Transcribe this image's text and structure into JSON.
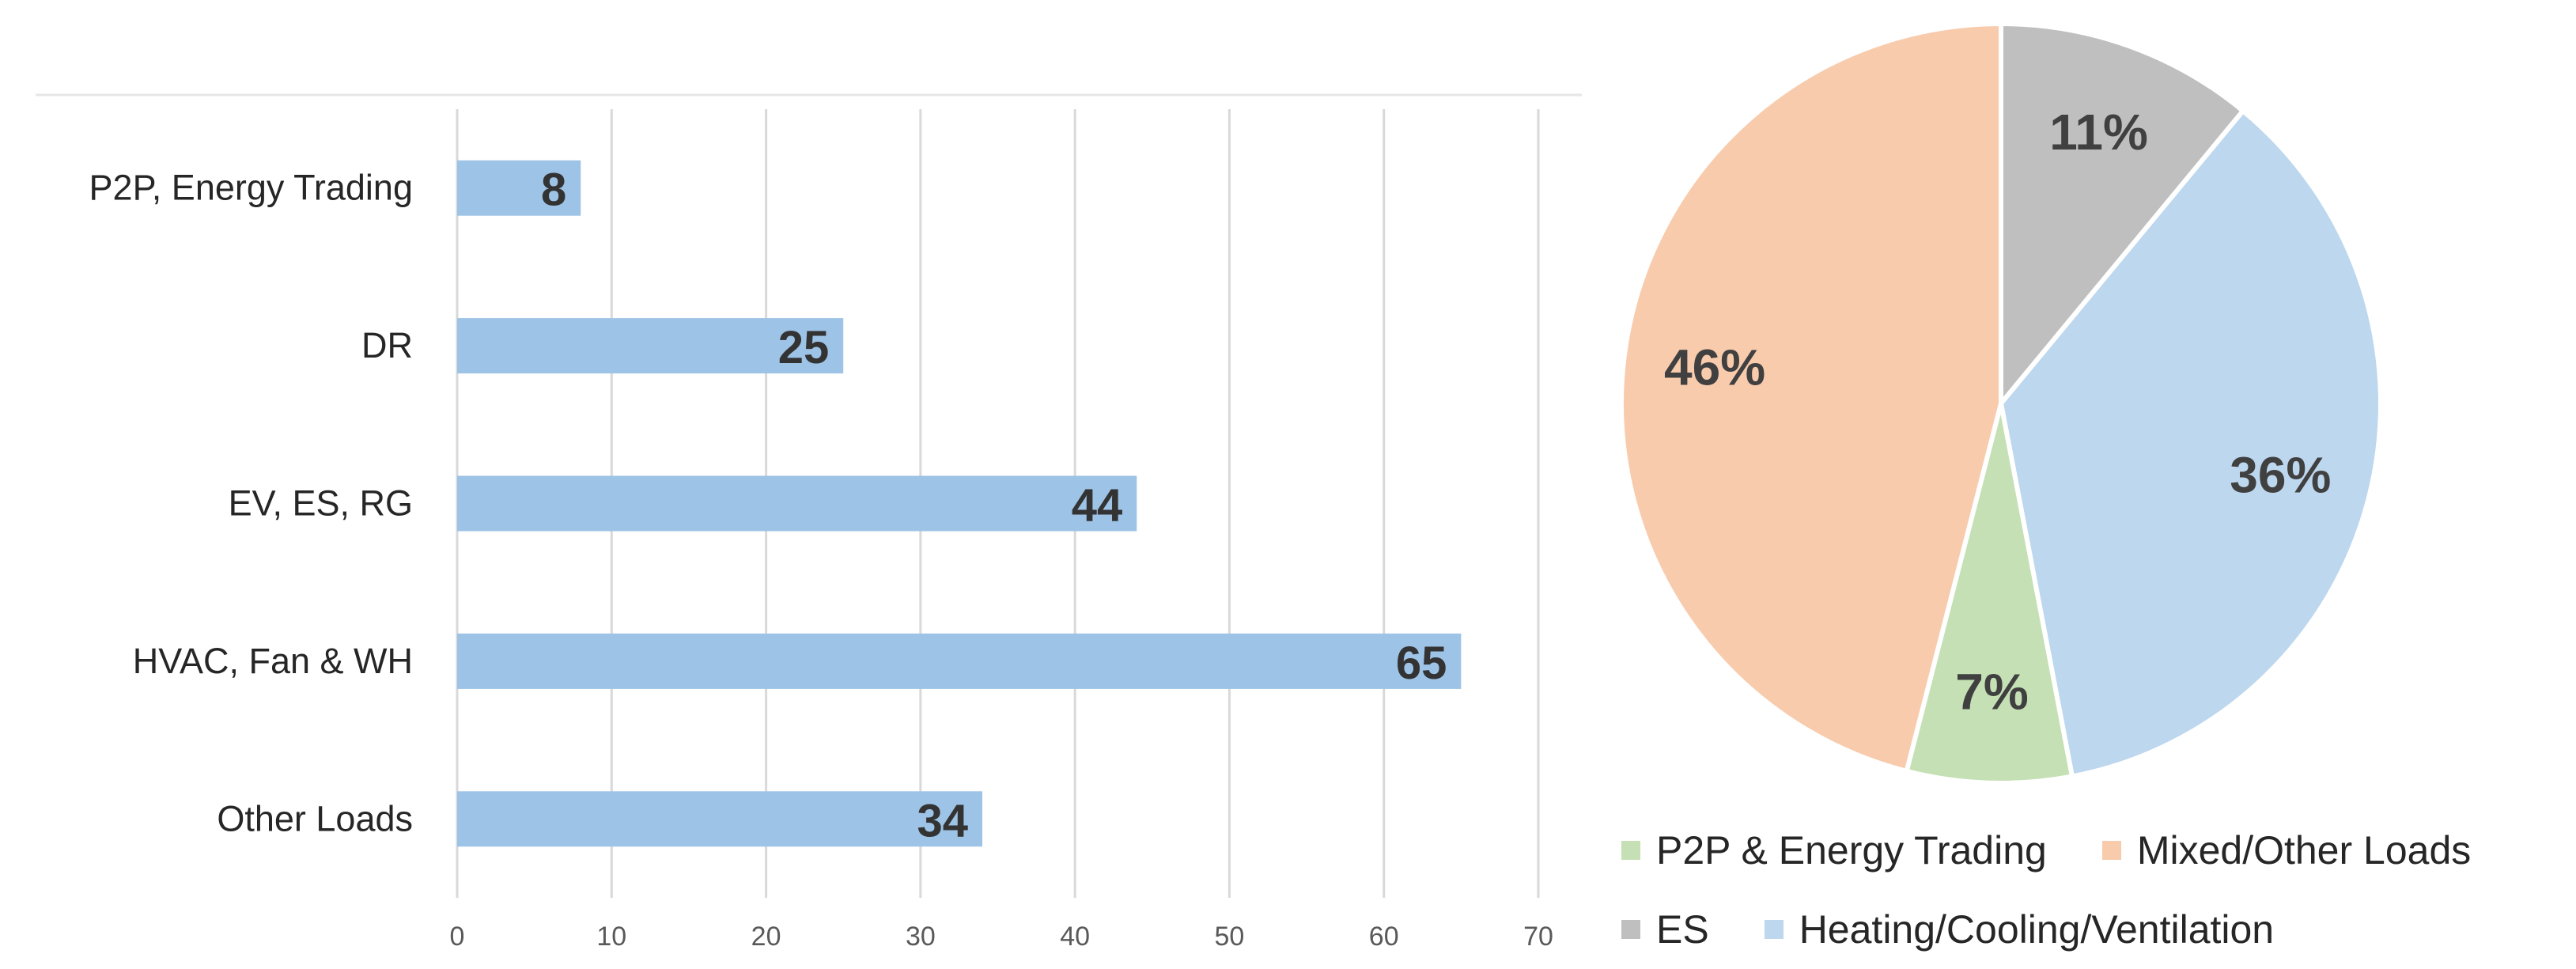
{
  "chart_data": [
    {
      "type": "bar",
      "orientation": "horizontal",
      "categories": [
        "P2P, Energy Trading",
        "DR",
        "EV, ES, RG",
        "HVAC, Fan & WH",
        "Other Loads"
      ],
      "values": [
        8,
        25,
        44,
        65,
        34
      ],
      "xlim": [
        0,
        70
      ],
      "x_ticks": [
        0,
        10,
        20,
        30,
        40,
        50,
        60,
        70
      ],
      "grid": true,
      "bar_color": "#9DC3E6",
      "data_labels": true
    },
    {
      "type": "pie",
      "slices": [
        {
          "label": "ES",
          "value": 11,
          "display": "11%",
          "color": "#BFBFBF"
        },
        {
          "label": "Heating/Cooling/Ventilation",
          "value": 36,
          "display": "36%",
          "color": "#BDD7EE"
        },
        {
          "label": "P2P & Energy Trading",
          "value": 7,
          "display": "7%",
          "color": "#C5E0B4"
        },
        {
          "label": "Mixed/Other Loads",
          "value": 46,
          "display": "46%",
          "color": "#F8CBAD"
        }
      ],
      "start_angle_deg": 0,
      "direction": "clockwise",
      "legend_placement": "bottom",
      "legend_rows": [
        [
          "P2P & Energy Trading",
          "Mixed/Other Loads"
        ],
        [
          "ES",
          "Heating/Cooling/Ventilation"
        ]
      ]
    }
  ]
}
